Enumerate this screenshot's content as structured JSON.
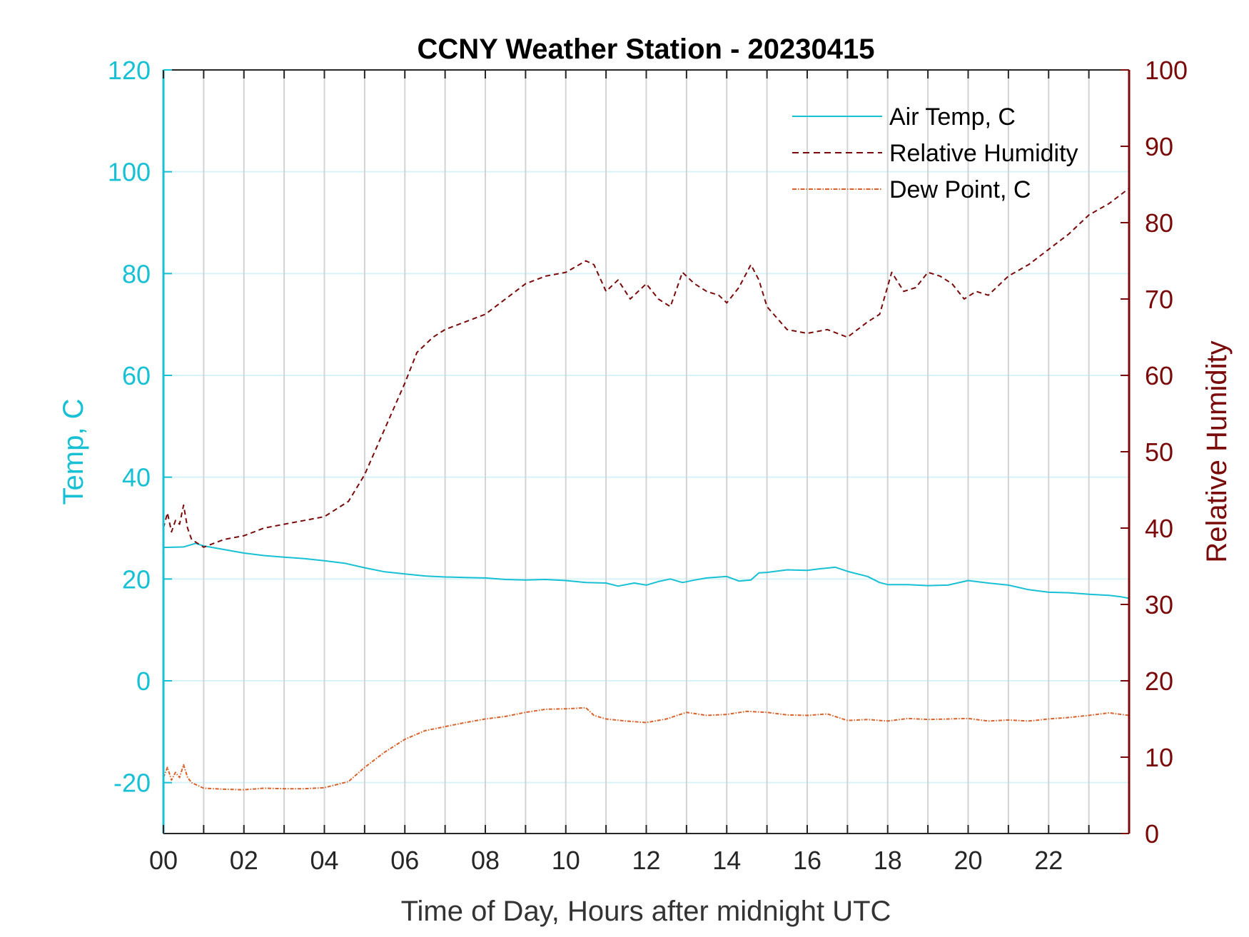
{
  "chart_data": {
    "type": "line",
    "title": "CCNY Weather Station - 20230415",
    "xlabel": "Time of Day, Hours after midnight UTC",
    "ylabel_left": "Temp, C",
    "ylabel_right": "Relative Humidity",
    "xlim": [
      0,
      24
    ],
    "ylim_left": [
      -30,
      120
    ],
    "ylim_right": [
      0,
      100
    ],
    "x_tick_values": [
      0,
      2,
      4,
      6,
      8,
      10,
      12,
      14,
      16,
      18,
      20,
      22
    ],
    "x_tick_labels": [
      "00",
      "02",
      "04",
      "06",
      "08",
      "10",
      "12",
      "14",
      "16",
      "18",
      "20",
      "22"
    ],
    "y_left_tick_values": [
      -20,
      0,
      20,
      40,
      60,
      80,
      100,
      120
    ],
    "y_left_tick_labels": [
      "-20",
      "0",
      "20",
      "40",
      "60",
      "80",
      "100",
      "120"
    ],
    "y_right_tick_values": [
      0,
      10,
      20,
      30,
      40,
      50,
      60,
      70,
      80,
      90,
      100
    ],
    "y_right_tick_labels": [
      "0",
      "10",
      "20",
      "30",
      "40",
      "50",
      "60",
      "70",
      "80",
      "90",
      "100"
    ],
    "grid": "vertical lines every hour, light horizontal lines at left-axis ticks",
    "legend_position": "top-right",
    "colors": {
      "air_temp": "#17c0d4",
      "humidity": "#7a0a0a",
      "dew_point": "#d9622a",
      "left_axis": "#17c0d4",
      "right_axis": "#7a0a0a",
      "vgrid": "#d3d3d3",
      "hgrid": "#d6f3f7"
    },
    "series": [
      {
        "name": "Air Temp, C",
        "axis": "left",
        "style": "solid",
        "x": [
          0,
          0.5,
          0.8,
          1,
          1.5,
          2,
          2.5,
          3,
          3.5,
          4,
          4.5,
          5,
          5.5,
          6,
          6.5,
          7,
          7.5,
          8,
          8.5,
          9,
          9.5,
          10,
          10.5,
          11,
          11.3,
          11.7,
          12,
          12.3,
          12.6,
          12.9,
          13.2,
          13.5,
          14,
          14.3,
          14.6,
          14.8,
          15,
          15.5,
          16,
          16.3,
          16.7,
          17,
          17.5,
          17.8,
          18,
          18.5,
          19,
          19.5,
          20,
          20.5,
          21,
          21.5,
          22,
          22.5,
          23,
          23.5,
          23.8,
          24
        ],
        "values": [
          26.2,
          26.3,
          27,
          26.5,
          25.8,
          25.1,
          24.6,
          24.3,
          24.0,
          23.6,
          23.1,
          22.2,
          21.4,
          21.0,
          20.6,
          20.4,
          20.3,
          20.2,
          19.9,
          19.8,
          19.9,
          19.7,
          19.3,
          19.2,
          18.6,
          19.2,
          18.8,
          19.5,
          20,
          19.3,
          19.8,
          20.2,
          20.5,
          19.6,
          19.8,
          21.2,
          21.3,
          21.8,
          21.7,
          22.0,
          22.3,
          21.5,
          20.5,
          19.3,
          18.9,
          18.9,
          18.7,
          18.8,
          19.7,
          19.2,
          18.8,
          17.9,
          17.4,
          17.3,
          17.0,
          16.8,
          16.5,
          16.2
        ]
      },
      {
        "name": "Relative Humidity",
        "axis": "right",
        "style": "dashed",
        "x": [
          0,
          0.1,
          0.2,
          0.3,
          0.4,
          0.5,
          0.6,
          0.7,
          1,
          1.5,
          2,
          2.5,
          3,
          3.5,
          4,
          4.6,
          5,
          5.5,
          6,
          6.3,
          6.7,
          7,
          7.5,
          8,
          8.5,
          9,
          9.5,
          10,
          10.5,
          10.7,
          11,
          11.3,
          11.6,
          12,
          12.3,
          12.6,
          12.9,
          13.2,
          13.5,
          13.8,
          14,
          14.3,
          14.6,
          14.8,
          15,
          15.5,
          16,
          16.5,
          17,
          17.5,
          17.8,
          18.1,
          18.4,
          18.7,
          19,
          19.3,
          19.6,
          19.9,
          20.2,
          20.5,
          21,
          21.5,
          22,
          22.5,
          23,
          23.5,
          24
        ],
        "values": [
          40,
          42,
          39.5,
          41,
          40.5,
          43,
          40,
          38.5,
          37.5,
          38.5,
          39,
          40,
          40.5,
          41,
          41.5,
          43.5,
          47,
          53,
          59,
          63,
          65,
          66,
          67,
          68,
          70,
          72,
          73,
          73.5,
          75,
          74.5,
          71,
          72.5,
          70,
          72,
          70,
          69,
          73.5,
          72,
          71,
          70.5,
          69.5,
          71.5,
          74.5,
          72.5,
          69,
          66,
          65.5,
          66,
          65,
          67,
          68,
          73.5,
          71,
          71.5,
          73.5,
          73,
          72,
          70,
          71,
          70.5,
          73,
          74.5,
          76.5,
          78.5,
          81,
          82.5,
          84.5
        ]
      },
      {
        "name": "Dew Point, C",
        "axis": "left",
        "style": "dash-dot",
        "x": [
          0,
          0.1,
          0.2,
          0.3,
          0.4,
          0.5,
          0.6,
          0.7,
          1,
          1.5,
          2,
          2.5,
          3,
          3.5,
          4,
          4.6,
          5,
          5.5,
          6,
          6.5,
          7,
          7.5,
          8,
          8.5,
          9,
          9.5,
          10,
          10.5,
          10.7,
          11,
          11.5,
          12,
          12.5,
          13,
          13.5,
          14,
          14.5,
          15,
          15.5,
          16,
          16.5,
          17,
          17.5,
          18,
          18.5,
          19,
          19.5,
          20,
          20.5,
          21,
          21.5,
          22,
          22.5,
          23,
          23.5,
          24
        ],
        "values": [
          -19,
          -17,
          -19.5,
          -18,
          -19,
          -16.5,
          -19,
          -20,
          -21.1,
          -21.3,
          -21.4,
          -21.1,
          -21.2,
          -21.2,
          -21.0,
          -19.8,
          -17,
          -14,
          -11.5,
          -9.8,
          -9,
          -8.2,
          -7.5,
          -7,
          -6.2,
          -5.6,
          -5.5,
          -5.3,
          -6.8,
          -7.5,
          -7.9,
          -8.2,
          -7.5,
          -6.2,
          -6.8,
          -6.6,
          -6,
          -6.2,
          -6.7,
          -6.8,
          -6.5,
          -7.8,
          -7.6,
          -7.9,
          -7.4,
          -7.6,
          -7.5,
          -7.4,
          -7.9,
          -7.7,
          -7.9,
          -7.5,
          -7.2,
          -6.8,
          -6.3,
          -6.8
        ]
      }
    ]
  }
}
